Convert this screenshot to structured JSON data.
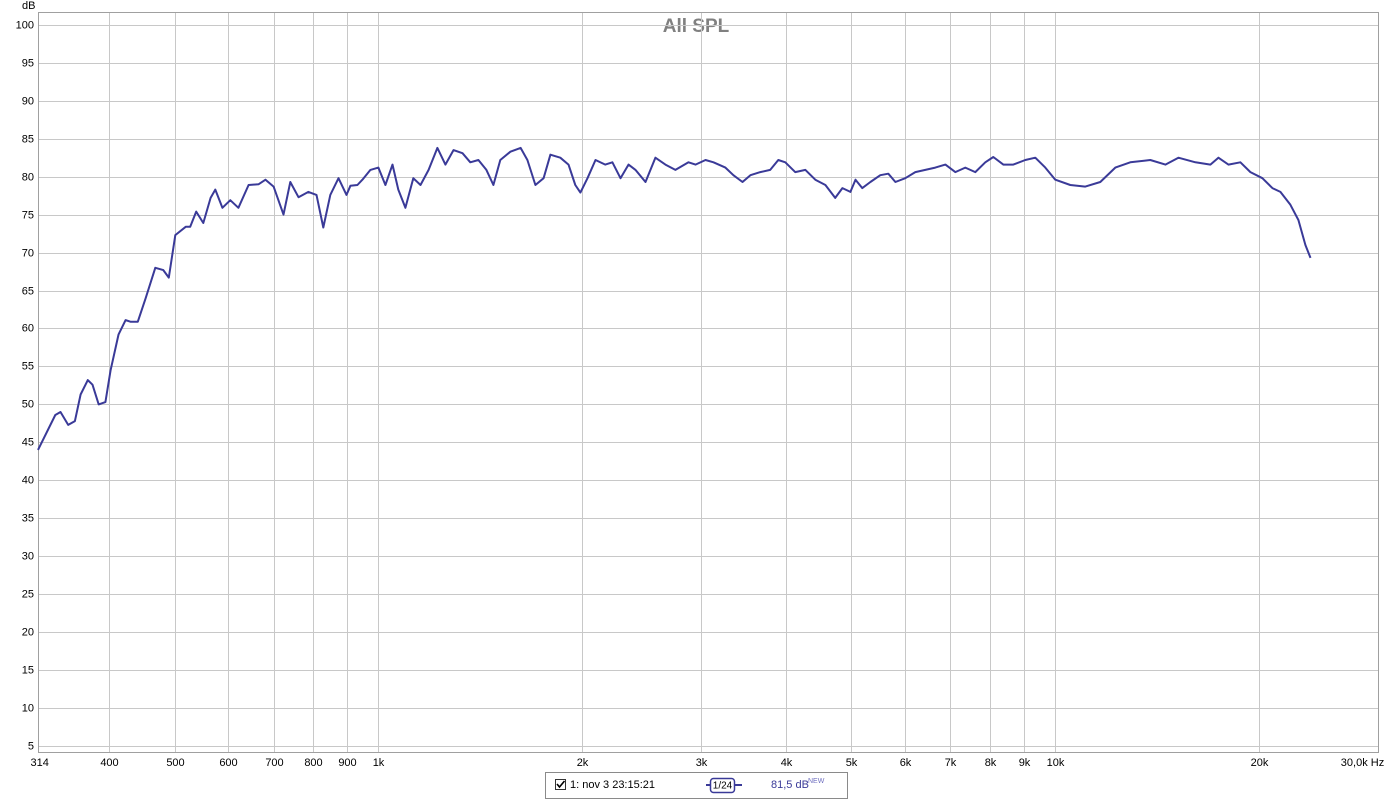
{
  "chart_data": {
    "type": "line",
    "title": "All SPL",
    "y_label": "dB",
    "xscale": "log",
    "grid": true,
    "xlim": [
      314,
      30000
    ],
    "ylim": [
      4.2,
      101.7
    ],
    "xticks": [
      314,
      400,
      500,
      600,
      700,
      800,
      900,
      {
        "value": 1000,
        "label": "1k"
      },
      {
        "value": 2000,
        "label": "2k"
      },
      {
        "value": 3000,
        "label": "3k"
      },
      {
        "value": 4000,
        "label": "4k"
      },
      {
        "value": 5000,
        "label": "5k"
      },
      {
        "value": 6000,
        "label": "6k"
      },
      {
        "value": 7000,
        "label": "7k"
      },
      {
        "value": 8000,
        "label": "8k"
      },
      {
        "value": 9000,
        "label": "9k"
      },
      {
        "value": 10000,
        "label": "10k"
      },
      {
        "value": 20000,
        "label": "20k"
      },
      {
        "value": 30000,
        "label": "30,0k Hz"
      }
    ],
    "yticks": [
      5,
      10,
      15,
      20,
      25,
      30,
      35,
      40,
      45,
      50,
      55,
      60,
      65,
      70,
      75,
      80,
      85,
      90,
      95,
      100
    ],
    "x": [
      314,
      333,
      339,
      348,
      356,
      363,
      372,
      378,
      386,
      395,
      402,
      413,
      423,
      430,
      441,
      453,
      468,
      481,
      490,
      501,
      519,
      527,
      538,
      551,
      565,
      574,
      588,
      604,
      621,
      643,
      665,
      681,
      700,
      724,
      741,
      762,
      788,
      810,
      829,
      849,
      873,
      897,
      909,
      931,
      947,
      973,
      1000,
      1024,
      1049,
      1070,
      1096,
      1126,
      1154,
      1186,
      1222,
      1256,
      1291,
      1331,
      1367,
      1405,
      1444,
      1479,
      1514,
      1567,
      1622,
      1660,
      1706,
      1754,
      1795,
      1857,
      1909,
      1954,
      1988,
      2037,
      2093,
      2164,
      2217,
      2279,
      2342,
      2398,
      2481,
      2566,
      2655,
      2747,
      2872,
      2941,
      3043,
      3127,
      3256,
      3346,
      3451,
      3545,
      3667,
      3793,
      3899,
      3992,
      4130,
      4275,
      4422,
      4576,
      4732,
      4849,
      4983,
      5069,
      5189,
      5333,
      5516,
      5668,
      5807,
      6007,
      6214,
      6430,
      6652,
      6883,
      7120,
      7366,
      7621,
      7885,
      8104,
      8384,
      8673,
      9036,
      9348,
      9671,
      10007,
      10531,
      11081,
      11663,
      12272,
      12915,
      13823,
      14551,
      15212,
      16116,
      16961,
      17427,
      18031,
      18782,
      19434,
      20246,
      20947,
      21525,
      22269,
      22883,
      23437,
      23840
    ],
    "series": [
      {
        "name": "1: nov 3 23:15:21",
        "color": "#3a3a98",
        "smoothing": "1/24",
        "level": "81,5 dB",
        "badge": "NEW",
        "values": [
          44.0,
          48.6,
          49.0,
          47.3,
          47.8,
          51.3,
          53.2,
          52.6,
          50.0,
          50.3,
          54.5,
          59.2,
          61.1,
          60.9,
          60.9,
          64.0,
          68.0,
          67.7,
          66.7,
          72.3,
          73.4,
          73.4,
          75.4,
          73.9,
          77.2,
          78.3,
          75.9,
          76.9,
          75.9,
          78.9,
          79.0,
          79.6,
          78.7,
          75.0,
          79.3,
          77.3,
          78.0,
          77.6,
          73.3,
          77.6,
          79.8,
          77.6,
          78.8,
          78.9,
          79.6,
          80.9,
          81.2,
          78.9,
          81.6,
          78.3,
          75.9,
          79.8,
          78.9,
          80.9,
          83.8,
          81.6,
          83.5,
          83.1,
          81.9,
          82.2,
          80.9,
          78.9,
          82.2,
          83.3,
          83.8,
          82.2,
          78.9,
          79.8,
          82.9,
          82.5,
          81.6,
          78.9,
          77.9,
          79.8,
          82.2,
          81.6,
          81.9,
          79.8,
          81.6,
          80.9,
          79.3,
          82.5,
          81.6,
          80.9,
          81.9,
          81.6,
          82.2,
          81.9,
          81.2,
          80.2,
          79.3,
          80.2,
          80.6,
          80.9,
          82.2,
          81.9,
          80.6,
          80.9,
          79.6,
          78.9,
          77.2,
          78.5,
          78.0,
          79.6,
          78.5,
          79.3,
          80.2,
          80.4,
          79.3,
          79.8,
          80.6,
          80.9,
          81.2,
          81.6,
          80.6,
          81.2,
          80.6,
          81.9,
          82.6,
          81.6,
          81.6,
          82.2,
          82.5,
          81.2,
          79.6,
          78.9,
          78.7,
          79.3,
          81.2,
          81.9,
          82.2,
          81.6,
          82.5,
          81.9,
          81.6,
          82.5,
          81.6,
          81.9,
          80.6,
          79.8,
          78.5,
          78.0,
          76.3,
          74.3,
          71.0,
          69.3
        ]
      }
    ]
  }
}
